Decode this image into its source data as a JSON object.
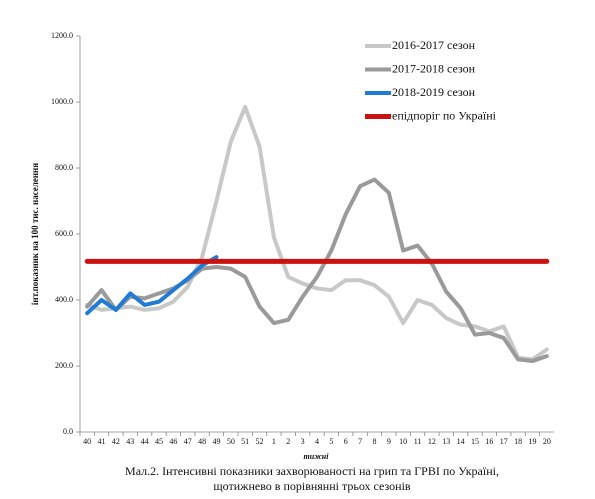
{
  "chart_data": {
    "type": "line",
    "ylabel": "інт.показник на 100 тис. населення",
    "xlabel": "тижні",
    "caption": [
      "Мал.2. Інтенсивні показники захворюваності на грип та ГРВІ по Україні,",
      "щотижнево в порівнянні трьох сезонів"
    ],
    "categories": [
      "40",
      "41",
      "42",
      "43",
      "44",
      "45",
      "46",
      "47",
      "48",
      "49",
      "50",
      "51",
      "52",
      "1",
      "2",
      "3",
      "4",
      "5",
      "6",
      "7",
      "8",
      "9",
      "10",
      "11",
      "12",
      "13",
      "14",
      "15",
      "16",
      "17",
      "18",
      "19",
      "20"
    ],
    "series": [
      {
        "name": "2016-2017 сезон",
        "color": "#c8c8c8",
        "width": 4,
        "values": [
          385,
          370,
          375,
          380,
          370,
          375,
          395,
          440,
          530,
          700,
          880,
          985,
          865,
          590,
          470,
          450,
          435,
          430,
          460,
          460,
          445,
          410,
          330,
          400,
          385,
          345,
          325,
          320,
          305,
          320,
          225,
          220,
          250
        ]
      },
      {
        "name": "2017-2018 сезон",
        "color": "#9a9a9a",
        "width": 4,
        "values": [
          380,
          430,
          370,
          410,
          405,
          420,
          435,
          460,
          495,
          500,
          495,
          470,
          380,
          330,
          340,
          410,
          470,
          550,
          660,
          745,
          765,
          725,
          550,
          565,
          510,
          425,
          375,
          295,
          300,
          285,
          220,
          215,
          230
        ]
      },
      {
        "name": "2018-2019 сезон",
        "color": "#1f7bd6",
        "width": 4,
        "values": [
          360,
          400,
          370,
          420,
          385,
          395,
          430,
          465,
          505,
          530,
          null,
          null,
          null,
          null,
          null,
          null,
          null,
          null,
          null,
          null,
          null,
          null,
          null,
          null,
          null,
          null,
          null,
          null,
          null,
          null,
          null,
          null,
          null
        ]
      },
      {
        "name": "епідпоріг по Україні",
        "color": "#cc1111",
        "width": 5,
        "values": [
          517,
          517,
          517,
          517,
          517,
          517,
          517,
          517,
          517,
          517,
          517,
          517,
          517,
          517,
          517,
          517,
          517,
          517,
          517,
          517,
          517,
          517,
          517,
          517,
          517,
          517,
          517,
          517,
          517,
          517,
          517,
          517,
          517
        ]
      }
    ],
    "ylim": [
      0,
      1200
    ],
    "yticks": [
      {
        "value": 0,
        "label": "0.0"
      },
      {
        "value": 200,
        "label": "200.0"
      },
      {
        "value": 400,
        "label": "400.0"
      },
      {
        "value": 600,
        "label": "600.0"
      },
      {
        "value": 800,
        "label": "800.0"
      },
      {
        "value": 1000,
        "label": "1000.0"
      },
      {
        "value": 1200,
        "label": "1200.0"
      }
    ],
    "legend": "top-right"
  }
}
